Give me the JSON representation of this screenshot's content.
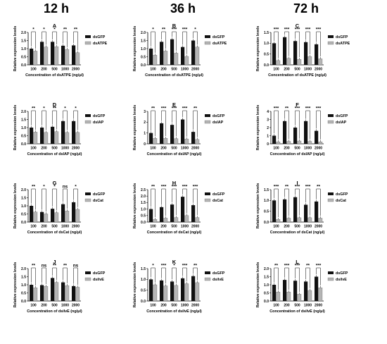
{
  "column_headers": [
    "12 h",
    "36 h",
    "72 h"
  ],
  "colors": {
    "dsgfp": "#111111",
    "treatment": "#b5b5b5"
  },
  "chart_data": [
    {
      "letter": "A",
      "type": "bar",
      "categories": [
        "100",
        "200",
        "500",
        "1000",
        "2000"
      ],
      "series": [
        {
          "name": "dsGFP",
          "values": [
            1.0,
            1.42,
            1.42,
            1.18,
            1.2
          ]
        },
        {
          "name": "dsATPE",
          "values": [
            0.85,
            1.1,
            1.12,
            0.95,
            0.75
          ]
        }
      ],
      "sig": [
        "*",
        "*",
        "*",
        "**",
        "**"
      ],
      "ylim": [
        0,
        2.0
      ],
      "yticks": [
        "0.0",
        "0.5",
        "1.0",
        "1.5",
        "2.0"
      ],
      "ylabel": "Relative expression levels",
      "xlabel": "Concentration of dsATPE (ng/μl)",
      "legend": [
        "dsGFP",
        "dsATPE"
      ]
    },
    {
      "letter": "B",
      "type": "bar",
      "categories": [
        "100",
        "200",
        "500",
        "1000",
        "2000"
      ],
      "series": [
        {
          "name": "dsGFP",
          "values": [
            1.0,
            1.42,
            1.58,
            1.1,
            1.5
          ]
        },
        {
          "name": "dsATPE",
          "values": [
            0.6,
            0.85,
            0.72,
            0.52,
            1.1
          ]
        }
      ],
      "sig": [
        "*",
        "**",
        "***",
        "***",
        "*"
      ],
      "ylim": [
        0,
        2.0
      ],
      "yticks": [
        "0.0",
        "0.5",
        "1.0",
        "1.5",
        "2.0"
      ],
      "ylabel": "Relative expression levels",
      "xlabel": "Concentration of dsATPE (ng/μl)",
      "legend": [
        "dsGFP",
        "dsATPE"
      ]
    },
    {
      "letter": "C",
      "type": "bar",
      "categories": [
        "100",
        "200",
        "500",
        "1000",
        "2000"
      ],
      "series": [
        {
          "name": "dsGFP",
          "values": [
            1.0,
            1.28,
            1.1,
            1.05,
            0.95
          ]
        },
        {
          "name": "dsATPE",
          "values": [
            0.2,
            0.3,
            0.25,
            0.38,
            0.28
          ]
        }
      ],
      "sig": [
        "***",
        "***",
        "***",
        "***",
        "***"
      ],
      "ylim": [
        0,
        1.5
      ],
      "yticks": [
        "0.0",
        "0.5",
        "1.0",
        "1.5"
      ],
      "ylabel": "Relative expression levels",
      "xlabel": "Concentration of dsATPE (ng/μl)",
      "legend": [
        "dsGFP",
        "dsATPE"
      ]
    },
    {
      "letter": "D",
      "type": "bar",
      "categories": [
        "100",
        "200",
        "500",
        "1000",
        "2000"
      ],
      "series": [
        {
          "name": "dsGFP",
          "values": [
            1.0,
            1.0,
            1.05,
            1.4,
            1.4
          ]
        },
        {
          "name": "dsIAP",
          "values": [
            0.72,
            0.7,
            0.75,
            0.7,
            0.7
          ]
        }
      ],
      "sig": [
        "**",
        "*",
        "**",
        "*",
        "*"
      ],
      "ylim": [
        0,
        2.0
      ],
      "yticks": [
        "0.0",
        "0.5",
        "1.0",
        "1.5",
        "2.0"
      ],
      "ylabel": "Relative expression levels",
      "xlabel": "Concentration of dsIAP (ng/μl)",
      "legend": [
        "dsGFP",
        "dsIAP"
      ]
    },
    {
      "letter": "E",
      "type": "bar",
      "categories": [
        "100",
        "200",
        "500",
        "1000",
        "2000"
      ],
      "series": [
        {
          "name": "dsGFP",
          "values": [
            1.0,
            1.9,
            1.75,
            2.25,
            1.1
          ]
        },
        {
          "name": "dsIAP",
          "values": [
            0.5,
            0.5,
            0.48,
            0.45,
            0.4
          ]
        }
      ],
      "sig": [
        "**",
        "***",
        "***",
        "***",
        "**"
      ],
      "ylim": [
        0,
        3
      ],
      "yticks": [
        "0",
        "1",
        "2",
        "3"
      ],
      "ylabel": "Relative expression levels",
      "xlabel": "Concentration of dsIAP (ng/μl)",
      "legend": [
        "dsGFP",
        "dsIAP"
      ]
    },
    {
      "letter": "F",
      "type": "bar",
      "categories": [
        "100",
        "200",
        "500",
        "1000",
        "2000"
      ],
      "series": [
        {
          "name": "dsGFP",
          "values": [
            1.0,
            2.8,
            2.0,
            2.8,
            1.6
          ]
        },
        {
          "name": "dsIAP",
          "values": [
            0.25,
            0.3,
            0.35,
            0.3,
            0.25
          ]
        }
      ],
      "sig": [
        "***",
        "**",
        "***",
        "***",
        "***"
      ],
      "ylim": [
        0,
        4
      ],
      "yticks": [
        "0",
        "1",
        "2",
        "3",
        "4"
      ],
      "ylabel": "Relative expression levels",
      "xlabel": "Concentration of dsIAP (ng/μl)",
      "legend": [
        "dsGFP",
        "dsIAP"
      ]
    },
    {
      "letter": "G",
      "type": "bar",
      "categories": [
        "100",
        "200",
        "500",
        "1000",
        "2000"
      ],
      "series": [
        {
          "name": "dsGFP",
          "values": [
            1.0,
            0.62,
            0.82,
            1.1,
            1.22
          ]
        },
        {
          "name": "dsCat",
          "values": [
            0.62,
            0.5,
            0.58,
            0.68,
            0.78
          ]
        }
      ],
      "sig": [
        "**",
        "*",
        "*",
        "ns",
        "*"
      ],
      "ylim": [
        0,
        2.0
      ],
      "yticks": [
        "0.0",
        "0.5",
        "1.0",
        "1.5",
        "2.0"
      ],
      "ylabel": "Relative expression levels",
      "xlabel": "Concentration of dsCat (ng/μl)",
      "legend": [
        "dsGFP",
        "dsCat"
      ]
    },
    {
      "letter": "H",
      "type": "bar",
      "categories": [
        "100",
        "200",
        "500",
        "1000",
        "2000"
      ],
      "series": [
        {
          "name": "dsGFP",
          "values": [
            1.0,
            1.15,
            1.35,
            1.95,
            1.3
          ]
        },
        {
          "name": "dsCat",
          "values": [
            0.2,
            0.3,
            0.35,
            0.5,
            0.35
          ]
        }
      ],
      "sig": [
        "**",
        "***",
        "***",
        "***",
        "***"
      ],
      "ylim": [
        0,
        2.5
      ],
      "yticks": [
        "0.0",
        "0.5",
        "1.0",
        "1.5",
        "2.0",
        "2.5"
      ],
      "ylabel": "Relative expression levels",
      "xlabel": "Concentration of dsCat (ng/μl)",
      "legend": [
        "dsGFP",
        "dsCat"
      ]
    },
    {
      "letter": "I",
      "type": "bar",
      "categories": [
        "100",
        "200",
        "500",
        "1000",
        "2000"
      ],
      "series": [
        {
          "name": "dsGFP",
          "values": [
            1.0,
            1.05,
            1.15,
            0.8,
            0.95
          ]
        },
        {
          "name": "dsCat",
          "values": [
            0.12,
            0.18,
            0.2,
            0.2,
            0.18
          ]
        }
      ],
      "sig": [
        "***",
        "**",
        "***",
        "***",
        "**"
      ],
      "ylim": [
        0,
        1.5
      ],
      "yticks": [
        "0.0",
        "0.5",
        "1.0",
        "1.5"
      ],
      "ylabel": "Relative expression levels",
      "xlabel": "Concentration of dsCat (ng/μl)",
      "legend": [
        "dsGFP",
        "dsCat"
      ]
    },
    {
      "letter": "J",
      "type": "bar",
      "categories": [
        "100",
        "200",
        "500",
        "1000",
        "2000"
      ],
      "series": [
        {
          "name": "dsGFP",
          "values": [
            1.0,
            0.98,
            1.42,
            1.15,
            0.92
          ]
        },
        {
          "name": "dsilvE",
          "values": [
            0.82,
            0.9,
            1.15,
            0.95,
            0.85
          ]
        }
      ],
      "sig": [
        "**",
        "ns",
        "**",
        "**",
        "ns"
      ],
      "ylim": [
        0,
        2.0
      ],
      "yticks": [
        "0.0",
        "0.5",
        "1.0",
        "1.5",
        "2.0"
      ],
      "ylabel": "Relative expression levels",
      "xlabel": "Concentration of dsilvE (ng/μl)",
      "legend": [
        "dsGFP",
        "dsilvE"
      ]
    },
    {
      "letter": "K",
      "type": "bar",
      "categories": [
        "100",
        "200",
        "500",
        "1000",
        "2000"
      ],
      "series": [
        {
          "name": "dsGFP",
          "values": [
            1.0,
            0.95,
            0.9,
            1.05,
            1.15
          ]
        },
        {
          "name": "dsilvE",
          "values": [
            0.75,
            0.7,
            0.72,
            0.8,
            0.85
          ]
        }
      ],
      "sig": [
        "*",
        "***",
        "*",
        "***",
        "**"
      ],
      "ylim": [
        0,
        1.5
      ],
      "yticks": [
        "0.0",
        "0.5",
        "1.0",
        "1.5"
      ],
      "ylabel": "Relative expression levels",
      "xlabel": "Concentration of dsilvE (ng/μl)",
      "legend": [
        "dsGFP",
        "dsilvE"
      ]
    },
    {
      "letter": "L",
      "type": "bar",
      "categories": [
        "100",
        "200",
        "500",
        "1000",
        "2000"
      ],
      "series": [
        {
          "name": "dsGFP",
          "values": [
            1.0,
            1.3,
            1.25,
            1.2,
            1.5
          ]
        },
        {
          "name": "dsilvE",
          "values": [
            0.55,
            0.55,
            0.42,
            0.65,
            0.82
          ]
        }
      ],
      "sig": [
        "**",
        "***",
        "***",
        "**",
        "***"
      ],
      "ylim": [
        0,
        2.0
      ],
      "yticks": [
        "0.0",
        "0.5",
        "1.0",
        "1.5",
        "2.0"
      ],
      "ylabel": "Relative expression levels",
      "xlabel": "Concentration of dsilvE (ng/μl)",
      "legend": [
        "dsGFP",
        "dsilvE"
      ]
    }
  ]
}
